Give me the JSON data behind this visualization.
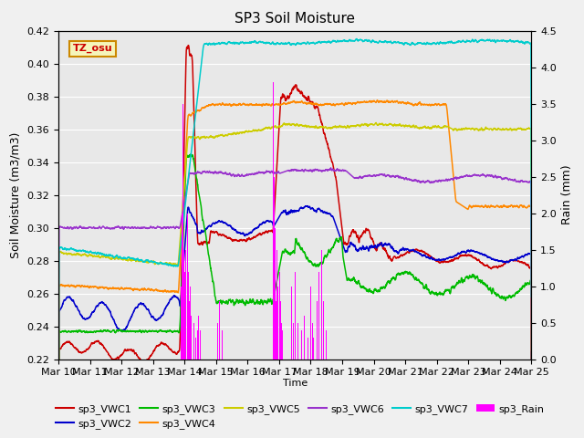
{
  "title": "SP3 Soil Moisture",
  "ylabel_left": "Soil Moisture (m3/m3)",
  "ylabel_right": "Rain (mm)",
  "xlabel": "Time",
  "ylim_left": [
    0.22,
    0.42
  ],
  "ylim_right": [
    0.0,
    4.5
  ],
  "tz_label": "TZ_osu",
  "bg_color": "#e8e8e8",
  "fig_color": "#f0f0f0",
  "line_colors": {
    "VWC1": "#cc0000",
    "VWC2": "#0000cc",
    "VWC3": "#00bb00",
    "VWC4": "#ff8800",
    "VWC5": "#cccc00",
    "VWC6": "#9933cc",
    "VWC7": "#00cccc",
    "Rain": "#ff00ff"
  },
  "x_tick_labels": [
    "Mar 10",
    "Mar 11",
    "Mar 12",
    "Mar 13",
    "Mar 14",
    "Mar 15",
    "Mar 16",
    "Mar 17",
    "Mar 18",
    "Mar 19",
    "Mar 20",
    "Mar 21",
    "Mar 22",
    "Mar 23",
    "Mar 24",
    "Mar 25"
  ],
  "yticks_left": [
    0.22,
    0.24,
    0.26,
    0.28,
    0.3,
    0.32,
    0.34,
    0.36,
    0.38,
    0.4,
    0.42
  ],
  "yticks_right": [
    0.0,
    0.5,
    1.0,
    1.5,
    2.0,
    2.5,
    3.0,
    3.5,
    4.0,
    4.5
  ]
}
